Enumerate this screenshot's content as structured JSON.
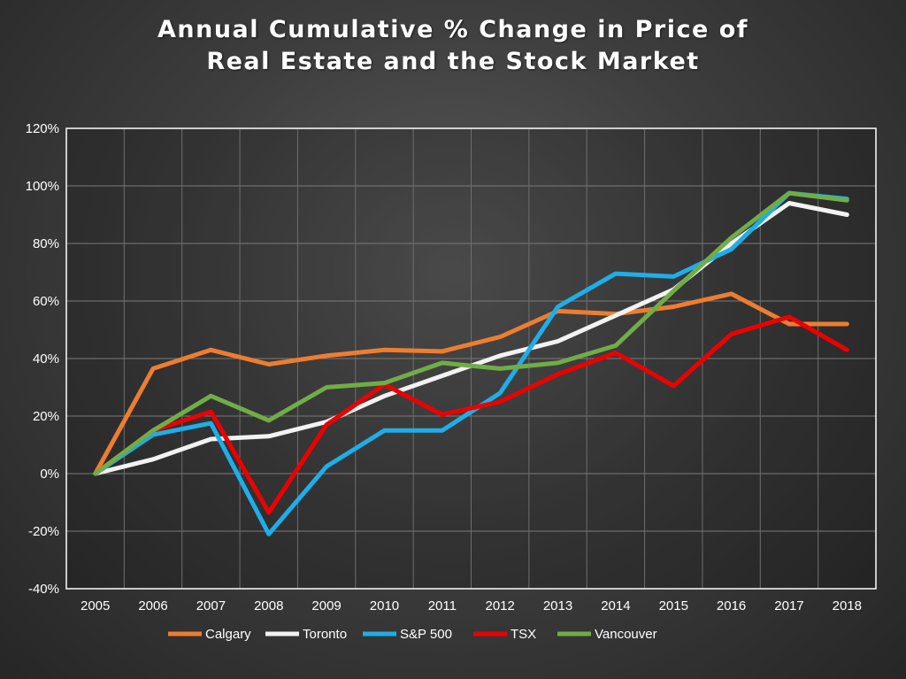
{
  "chart_data": {
    "type": "line",
    "title": [
      "Annual Cumulative % Change in Price of",
      "Real Estate and the Stock Market"
    ],
    "xlabel": "",
    "ylabel": "",
    "x": [
      "2005",
      "2006",
      "2007",
      "2008",
      "2009",
      "2010",
      "2011",
      "2012",
      "2013",
      "2014",
      "2015",
      "2016",
      "2017",
      "2018"
    ],
    "ylim": [
      -40,
      120
    ],
    "y_ticks": [
      -40,
      -20,
      0,
      20,
      40,
      60,
      80,
      100,
      120
    ],
    "y_tick_labels": [
      "-40%",
      "-20%",
      "0%",
      "20%",
      "40%",
      "60%",
      "80%",
      "100%",
      "120%"
    ],
    "grid": true,
    "legend_position": "bottom",
    "series": [
      {
        "name": "Calgary",
        "color": "#ed7d31",
        "values": [
          0,
          36.5,
          43,
          38,
          41,
          43,
          42.5,
          47.5,
          56.5,
          55.5,
          58,
          62.5,
          52,
          52
        ]
      },
      {
        "name": "Toronto",
        "color": "#f2f2f2",
        "values": [
          0,
          5,
          12,
          13,
          18,
          27,
          34,
          41,
          46,
          55,
          64,
          80,
          94,
          90
        ]
      },
      {
        "name": "S&P 500",
        "color": "#1eaee8",
        "values": [
          0,
          13.5,
          17.5,
          -21,
          2.5,
          15,
          15,
          28,
          58,
          69.5,
          68.5,
          78,
          97.5,
          95.5
        ]
      },
      {
        "name": "TSX",
        "color": "#ee0000",
        "values": [
          0,
          15,
          21.5,
          -13.5,
          17,
          31,
          20.5,
          25,
          34.5,
          42,
          30.5,
          48.5,
          54.5,
          43
        ]
      },
      {
        "name": "Vancouver",
        "color": "#70ad47",
        "values": [
          0,
          15,
          27,
          18.5,
          30,
          31.5,
          38.5,
          36.5,
          38.5,
          44.5,
          63.5,
          82,
          97.5,
          95
        ]
      }
    ]
  }
}
